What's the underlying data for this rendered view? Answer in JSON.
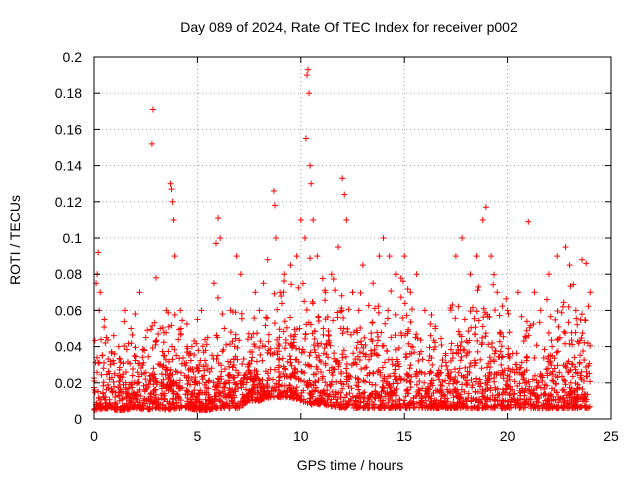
{
  "chart_data": {
    "type": "scatter",
    "title": "Day 089 of 2024, Rate Of TEC Index for receiver p002",
    "xlabel": "GPS time / hours",
    "ylabel": "ROTI / TECUs",
    "xlim": [
      0,
      25
    ],
    "ylim": [
      0,
      0.2
    ],
    "x_ticks": [
      0,
      5,
      10,
      15,
      20,
      25
    ],
    "y_ticks": [
      0,
      0.02,
      0.04,
      0.06,
      0.08,
      0.1,
      0.12,
      0.14,
      0.16,
      0.18,
      0.2
    ],
    "x_tick_labels": [
      "0",
      "5",
      "10",
      "15",
      "20",
      "25"
    ],
    "y_tick_labels": [
      "0",
      "0.02",
      "0.04",
      "0.06",
      "0.08",
      "0.1",
      "0.12",
      "0.14",
      "0.16",
      "0.18",
      "0.2"
    ],
    "grid": true,
    "marker": "+",
    "color": "#ff0000",
    "series": [
      {
        "name": "ROTI",
        "points": [
          [
            0.05,
            0.005
          ],
          [
            0.1,
            0.075
          ],
          [
            0.15,
            0.08
          ],
          [
            0.2,
            0.092
          ],
          [
            0.25,
            0.06
          ],
          [
            0.3,
            0.07
          ],
          [
            0.4,
            0.035
          ],
          [
            0.5,
            0.055
          ],
          [
            0.6,
            0.045
          ],
          [
            0.8,
            0.03
          ],
          [
            1.0,
            0.025
          ],
          [
            1.2,
            0.04
          ],
          [
            1.5,
            0.06
          ],
          [
            1.8,
            0.05
          ],
          [
            2.0,
            0.058
          ],
          [
            2.2,
            0.07
          ],
          [
            2.5,
            0.045
          ],
          [
            2.8,
            0.152
          ],
          [
            2.85,
            0.171
          ],
          [
            3.0,
            0.078
          ],
          [
            3.2,
            0.05
          ],
          [
            3.5,
            0.06
          ],
          [
            3.7,
            0.13
          ],
          [
            3.75,
            0.127
          ],
          [
            3.8,
            0.12
          ],
          [
            3.85,
            0.11
          ],
          [
            3.9,
            0.09
          ],
          [
            4.2,
            0.05
          ],
          [
            4.5,
            0.04
          ],
          [
            5.0,
            0.055
          ],
          [
            5.2,
            0.06
          ],
          [
            5.5,
            0.045
          ],
          [
            5.8,
            0.075
          ],
          [
            5.9,
            0.097
          ],
          [
            6.0,
            0.111
          ],
          [
            6.1,
            0.1
          ],
          [
            6.3,
            0.05
          ],
          [
            6.6,
            0.06
          ],
          [
            6.9,
            0.09
          ],
          [
            7.1,
            0.08
          ],
          [
            7.3,
            0.012
          ],
          [
            7.5,
            0.03
          ],
          [
            7.8,
            0.07
          ],
          [
            8.0,
            0.06
          ],
          [
            8.2,
            0.075
          ],
          [
            8.4,
            0.088
          ],
          [
            8.7,
            0.126
          ],
          [
            8.75,
            0.118
          ],
          [
            8.8,
            0.1
          ],
          [
            9.0,
            0.07
          ],
          [
            9.2,
            0.08
          ],
          [
            9.5,
            0.085
          ],
          [
            9.8,
            0.09
          ],
          [
            10.0,
            0.11
          ],
          [
            10.2,
            0.1
          ],
          [
            10.25,
            0.155
          ],
          [
            10.3,
            0.19
          ],
          [
            10.35,
            0.193
          ],
          [
            10.4,
            0.18
          ],
          [
            10.45,
            0.14
          ],
          [
            10.5,
            0.13
          ],
          [
            10.6,
            0.11
          ],
          [
            10.8,
            0.09
          ],
          [
            11.2,
            0.07
          ],
          [
            11.5,
            0.08
          ],
          [
            11.8,
            0.095
          ],
          [
            12.0,
            0.133
          ],
          [
            12.1,
            0.124
          ],
          [
            12.2,
            0.11
          ],
          [
            12.5,
            0.07
          ],
          [
            12.8,
            0.06
          ],
          [
            13.0,
            0.085
          ],
          [
            13.5,
            0.075
          ],
          [
            13.8,
            0.09
          ],
          [
            14.0,
            0.1
          ],
          [
            14.3,
            0.09
          ],
          [
            14.6,
            0.08
          ],
          [
            15.0,
            0.09
          ],
          [
            15.3,
            0.07
          ],
          [
            15.6,
            0.08
          ],
          [
            16.0,
            0.06
          ],
          [
            16.5,
            0.05
          ],
          [
            17.0,
            0.035
          ],
          [
            17.5,
            0.09
          ],
          [
            17.8,
            0.1
          ],
          [
            18.2,
            0.08
          ],
          [
            18.5,
            0.09
          ],
          [
            18.8,
            0.11
          ],
          [
            18.95,
            0.117
          ],
          [
            19.2,
            0.09
          ],
          [
            19.5,
            0.07
          ],
          [
            20.0,
            0.06
          ],
          [
            20.5,
            0.07
          ],
          [
            21.0,
            0.109
          ],
          [
            21.3,
            0.07
          ],
          [
            21.6,
            0.06
          ],
          [
            22.0,
            0.08
          ],
          [
            22.4,
            0.09
          ],
          [
            22.8,
            0.095
          ],
          [
            23.0,
            0.085
          ],
          [
            23.3,
            0.06
          ],
          [
            23.6,
            0.088
          ],
          [
            23.8,
            0.086
          ],
          [
            24.0,
            0.07
          ]
        ],
        "envelope": {
          "hours": [
            0,
            0.5,
            1,
            1.5,
            2,
            2.5,
            3,
            3.5,
            4,
            4.5,
            5,
            5.5,
            6,
            6.5,
            7,
            7.5,
            8,
            8.5,
            9,
            9.5,
            10,
            10.5,
            11,
            11.5,
            12,
            12.5,
            13,
            13.5,
            14,
            14.5,
            15,
            15.5,
            16,
            16.5,
            17,
            17.5,
            18,
            18.5,
            19,
            19.5,
            20,
            20.5,
            21,
            21.5,
            22,
            22.5,
            23,
            23.5,
            24
          ],
          "upper": [
            0.08,
            0.06,
            0.05,
            0.06,
            0.055,
            0.065,
            0.07,
            0.06,
            0.08,
            0.06,
            0.05,
            0.05,
            0.07,
            0.055,
            0.075,
            0.06,
            0.065,
            0.075,
            0.08,
            0.085,
            0.09,
            0.1,
            0.09,
            0.08,
            0.085,
            0.07,
            0.08,
            0.075,
            0.09,
            0.085,
            0.09,
            0.08,
            0.07,
            0.06,
            0.055,
            0.08,
            0.085,
            0.09,
            0.09,
            0.08,
            0.065,
            0.07,
            0.07,
            0.065,
            0.075,
            0.08,
            0.085,
            0.08,
            0.075
          ],
          "lower": [
            0.005,
            0.006,
            0.005,
            0.005,
            0.006,
            0.005,
            0.006,
            0.005,
            0.006,
            0.006,
            0.005,
            0.005,
            0.006,
            0.006,
            0.006,
            0.01,
            0.01,
            0.012,
            0.012,
            0.012,
            0.01,
            0.008,
            0.008,
            0.007,
            0.006,
            0.006,
            0.006,
            0.006,
            0.006,
            0.006,
            0.006,
            0.006,
            0.006,
            0.006,
            0.006,
            0.006,
            0.006,
            0.006,
            0.006,
            0.006,
            0.006,
            0.006,
            0.006,
            0.006,
            0.006,
            0.006,
            0.006,
            0.006,
            0.006
          ]
        }
      }
    ]
  }
}
